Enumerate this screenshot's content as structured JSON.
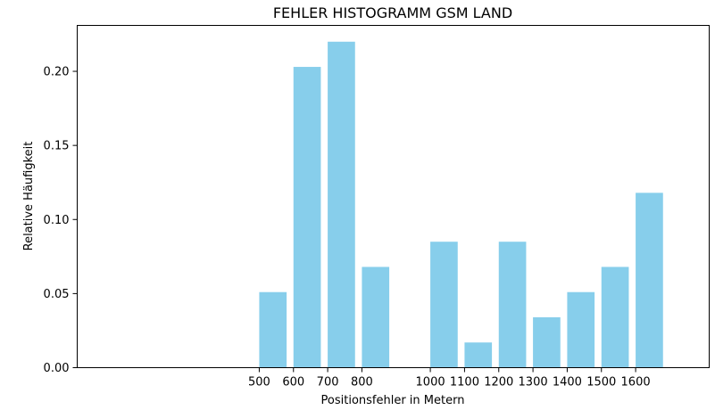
{
  "chart_data": {
    "type": "bar",
    "title": "FEHLER HISTOGRAMM GSM LAND",
    "xlabel": "Positionsfehler in Metern",
    "ylabel": "Relative Häufigkeit",
    "bar_color": "#87ceeb",
    "xlim": [
      -32,
      1815
    ],
    "ylim": [
      0,
      0.231
    ],
    "bar_width": 80,
    "x": [
      500,
      600,
      700,
      800,
      1000,
      1100,
      1200,
      1300,
      1400,
      1500,
      1600
    ],
    "values": [
      0.051,
      0.203,
      0.22,
      0.068,
      0.085,
      0.017,
      0.085,
      0.034,
      0.051,
      0.068,
      0.118
    ],
    "xticks": [
      500,
      600,
      700,
      800,
      1000,
      1100,
      1200,
      1300,
      1400,
      1500,
      1600
    ],
    "yticks": [
      0.0,
      0.05,
      0.1,
      0.15,
      0.2
    ],
    "ytick_labels": [
      "0.00",
      "0.05",
      "0.10",
      "0.15",
      "0.20"
    ],
    "grid": false
  }
}
